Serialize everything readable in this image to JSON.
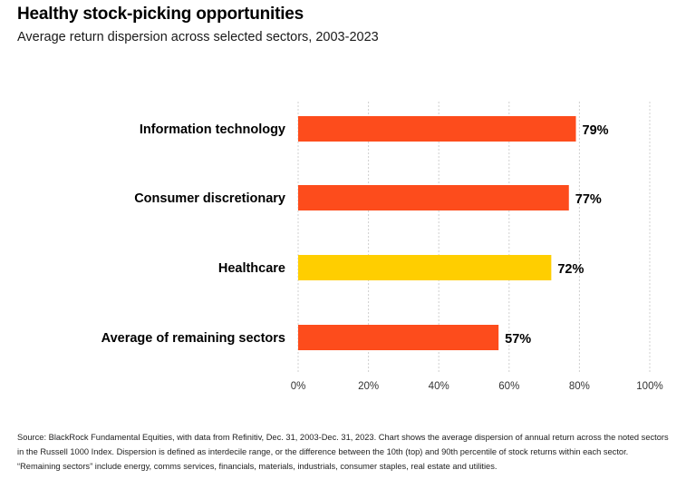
{
  "title": "Healthy stock-picking opportunities",
  "subtitle": "Average return dispersion across selected sectors, 2003-2023",
  "source": "Source: BlackRock Fundamental Equities, with data from Refinitiv, Dec. 31, 2003-Dec. 31, 2023. Chart shows the average dispersion of annual return across the noted sectors in the Russell 1000 Index. Dispersion is defined as interdecile range, or the difference between the 10th (top) and 90th percentile of stock returns within each sector. “Remaining sectors” include energy, comms services, financials, materials, industrials, consumer staples, real estate and utilities.",
  "chart_data": {
    "type": "bar",
    "orientation": "horizontal",
    "categories": [
      "Information technology",
      "Consumer discretionary",
      "Healthcare",
      "Average of remaining sectors"
    ],
    "values": [
      79,
      77,
      72,
      57
    ],
    "value_labels": [
      "79%",
      "77%",
      "72%",
      "57%"
    ],
    "bar_colors": [
      "#fd4c1c",
      "#fd4c1c",
      "#ffce00",
      "#fd4c1c"
    ],
    "xlim": [
      0,
      100
    ],
    "ticks": [
      0,
      20,
      40,
      60,
      80,
      100
    ],
    "tick_labels": [
      "0%",
      "20%",
      "40%",
      "60%",
      "80%",
      "100%"
    ],
    "grid": "vertical dashed",
    "grid_color": "#d0d0d0"
  }
}
